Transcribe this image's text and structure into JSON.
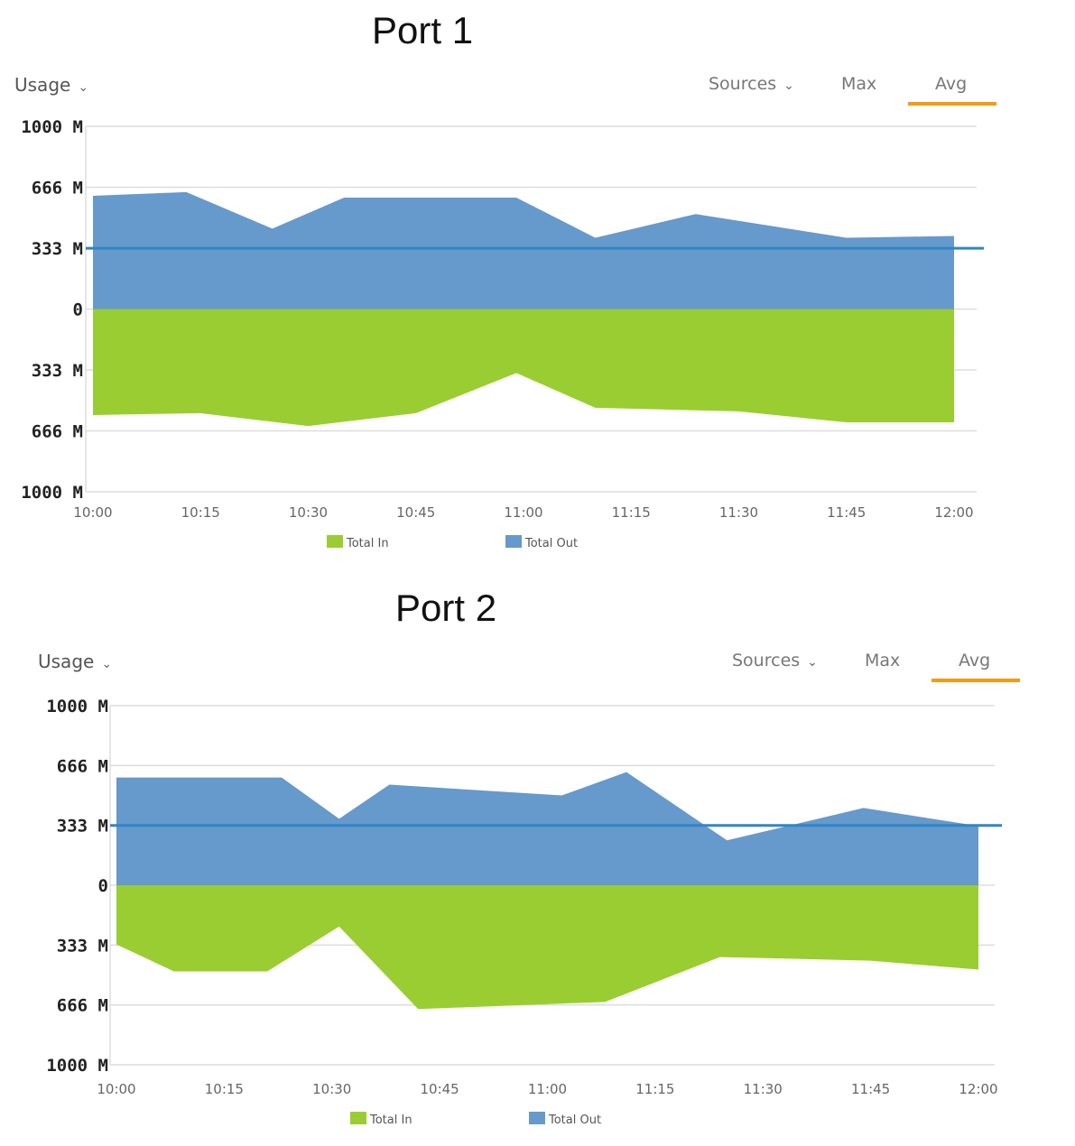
{
  "colors": {
    "in": "#9acd32",
    "out": "#6699cc",
    "accent": "#f39c12",
    "ref_line": "#2f86c7",
    "grid": "#dddddd"
  },
  "controls": {
    "usage_label": "Usage",
    "sources_label": "Sources",
    "max_label": "Max",
    "avg_label": "Avg"
  },
  "panels": [
    {
      "title": "Port 1",
      "legend": {
        "in": "Total In",
        "out": "Total Out"
      }
    },
    {
      "title": "Port 2",
      "legend": {
        "in": "Total In",
        "out": "Total Out"
      }
    }
  ],
  "chart_data": [
    {
      "type": "area",
      "title": "Port 1",
      "ylabel": "Usage",
      "yticks": [
        "1000 M",
        "666 M",
        "333 M",
        "0",
        "333 M",
        "666 M",
        "1000 M"
      ],
      "xticks": [
        "10:00",
        "10:15",
        "10:30",
        "10:45",
        "11:00",
        "11:15",
        "11:30",
        "11:45",
        "12:00"
      ],
      "ylim": [
        -1000,
        1000
      ],
      "reference_line": 333,
      "series": [
        {
          "name": "Total Out",
          "direction": "up",
          "x": [
            "10:00",
            "10:13",
            "10:25",
            "10:35",
            "10:59",
            "11:10",
            "11:24",
            "11:45",
            "12:00"
          ],
          "values": [
            620,
            640,
            440,
            610,
            610,
            390,
            520,
            390,
            400
          ]
        },
        {
          "name": "Total In",
          "direction": "down",
          "x": [
            "10:00",
            "10:15",
            "10:30",
            "10:45",
            "10:59",
            "11:10",
            "11:30",
            "11:45",
            "12:00"
          ],
          "values": [
            580,
            570,
            640,
            570,
            350,
            540,
            560,
            620,
            620
          ]
        }
      ]
    },
    {
      "type": "area",
      "title": "Port 2",
      "ylabel": "Usage",
      "yticks": [
        "1000 M",
        "666 M",
        "333 M",
        "0",
        "333 M",
        "666 M",
        "1000 M"
      ],
      "xticks": [
        "10:00",
        "10:15",
        "10:30",
        "10:45",
        "11:00",
        "11:15",
        "11:30",
        "11:45",
        "12:00"
      ],
      "ylim": [
        -1000,
        1000
      ],
      "reference_line": 333,
      "series": [
        {
          "name": "Total Out",
          "direction": "up",
          "x": [
            "10:00",
            "10:23",
            "10:31",
            "10:38",
            "11:02",
            "11:11",
            "11:25",
            "11:44",
            "12:00"
          ],
          "values": [
            600,
            600,
            370,
            560,
            500,
            630,
            250,
            430,
            330
          ]
        },
        {
          "name": "Total In",
          "direction": "down",
          "x": [
            "10:00",
            "10:08",
            "10:21",
            "10:31",
            "10:42",
            "11:08",
            "11:24",
            "11:45",
            "12:00"
          ],
          "values": [
            -330,
            -480,
            -480,
            -230,
            -690,
            -650,
            -400,
            -420,
            -470
          ]
        }
      ]
    }
  ]
}
